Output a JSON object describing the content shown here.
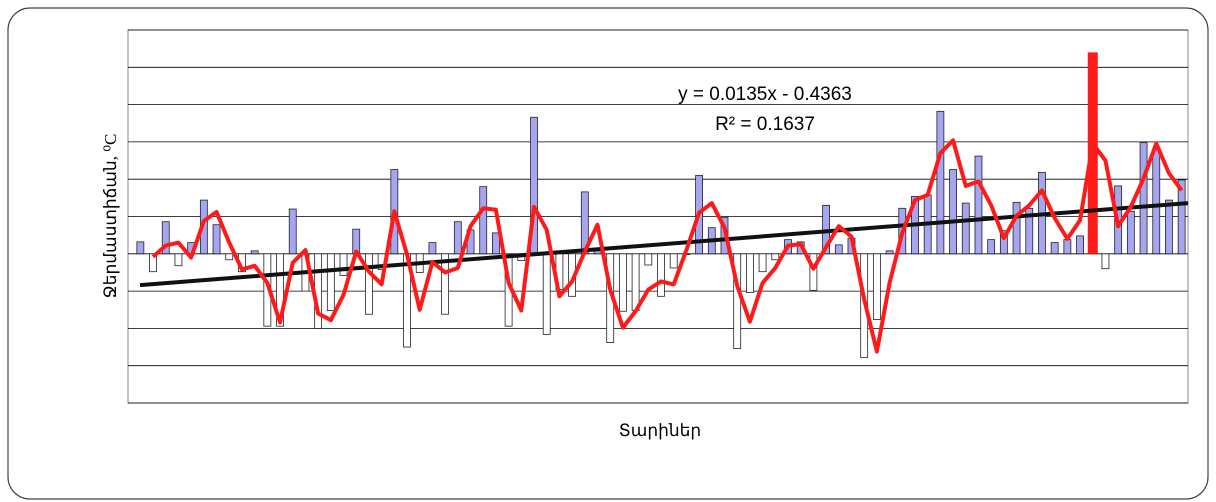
{
  "chart_data": {
    "type": "bar",
    "xlabel": "Տարիներ",
    "ylabel": "Ջերմաստիճան, ⁰C",
    "annotations": [
      "y = 0.0135x - 0.4363",
      "R² = 0.1637"
    ],
    "ylim": [
      -2,
      3
    ],
    "yticks": [
      -2,
      -1.5,
      -1,
      -0.5,
      0,
      0.5,
      1,
      1.5,
      2,
      2.5,
      3
    ],
    "grid": true,
    "categories": [
      null,
      null,
      null,
      null,
      null,
      null,
      null,
      null,
      null,
      null,
      null,
      null,
      null,
      null,
      null,
      null,
      null,
      null,
      null,
      null,
      null,
      null,
      null,
      null,
      null,
      null,
      null,
      null,
      null,
      null,
      null,
      null,
      null,
      null,
      null,
      null,
      null,
      null,
      null,
      null,
      null,
      null,
      null,
      null,
      null,
      null,
      null,
      null,
      null,
      null,
      null,
      null,
      null,
      null,
      null,
      null,
      null,
      null,
      null,
      null,
      null,
      null,
      null,
      null,
      null,
      null,
      null,
      null,
      null,
      null,
      null,
      null,
      null,
      null,
      null,
      null,
      null,
      null,
      null,
      null,
      null,
      null,
      null
    ],
    "series": [
      {
        "type": "bar",
        "color": "#a6a6f0",
        "values": [
          0.16,
          -0.24,
          0.43,
          -0.16,
          0.15,
          0.72,
          0.39,
          -0.08,
          -0.24,
          0.04,
          -0.97,
          -0.97,
          0.6,
          -0.5,
          -1.0,
          -0.76,
          -0.29,
          0.33,
          -0.81,
          -0.21,
          1.13,
          -1.25,
          -0.25,
          0.15,
          -0.81,
          0.43,
          0.32,
          0.9,
          0.28,
          -0.97,
          -0.09,
          1.83,
          -1.08,
          -0.48,
          -0.57,
          0.83,
          0.04,
          -1.19,
          -0.77,
          -0.76,
          -0.15,
          -0.57,
          -0.19,
          -0.01,
          1.05,
          0.35,
          0.49,
          -1.27,
          -0.52,
          -0.24,
          -0.08,
          0.19,
          0.16,
          -0.49,
          0.65,
          0.12,
          0.21,
          -1.39,
          -0.88,
          0.04,
          0.61,
          0.77,
          0.79,
          1.91,
          1.13,
          0.68,
          1.31,
          0.19,
          0.31,
          0.69,
          0.61,
          1.09,
          0.15,
          0.19,
          0.24,
          0.08,
          -0.2,
          0.91,
          0.57,
          1.49,
          1.39,
          0.72,
          0.99
        ]
      },
      {
        "type": "line",
        "color": "#ff1a1a",
        "values": [
          null,
          -0.04,
          0.11,
          0.15,
          -0.05,
          0.44,
          0.56,
          0.15,
          -0.21,
          -0.16,
          -0.39,
          -0.92,
          -0.12,
          0.05,
          -0.8,
          -0.89,
          -0.55,
          0.03,
          -0.24,
          -0.41,
          0.57,
          -0.01,
          -0.75,
          -0.11,
          -0.25,
          -0.19,
          0.37,
          0.61,
          0.59,
          -0.39,
          -0.76,
          0.63,
          0.32,
          -0.57,
          -0.37,
          0.03,
          0.39,
          -0.48,
          -0.99,
          -0.77,
          -0.48,
          -0.37,
          -0.41,
          0.05,
          0.55,
          0.68,
          0.35,
          -0.43,
          -0.91,
          -0.39,
          -0.19,
          0.11,
          0.13,
          -0.2,
          0.09,
          0.37,
          0.23,
          -0.61,
          -1.31,
          -0.39,
          0.28,
          0.72,
          0.79,
          1.35,
          1.52,
          0.91,
          0.97,
          0.65,
          0.21,
          0.51,
          0.65,
          0.85,
          0.48,
          0.2,
          0.45,
          1.48,
          1.25,
          0.37,
          0.63,
          1.01,
          1.48,
          1.08,
          0.85
        ]
      },
      {
        "type": "spike",
        "color": "#ff1a1a",
        "values": [
          null,
          null,
          null,
          null,
          null,
          null,
          null,
          null,
          null,
          null,
          null,
          null,
          null,
          null,
          null,
          null,
          null,
          null,
          null,
          null,
          null,
          null,
          null,
          null,
          null,
          null,
          null,
          null,
          null,
          null,
          null,
          null,
          null,
          null,
          null,
          null,
          null,
          null,
          null,
          null,
          null,
          null,
          null,
          null,
          null,
          null,
          null,
          null,
          null,
          null,
          null,
          null,
          null,
          null,
          null,
          null,
          null,
          null,
          null,
          null,
          null,
          null,
          null,
          null,
          null,
          null,
          null,
          null,
          null,
          null,
          null,
          null,
          null,
          null,
          null,
          2.7,
          null,
          null,
          null,
          null,
          null,
          null,
          null
        ]
      }
    ],
    "trendline": {
      "color": "#111111",
      "values": [
        -0.42,
        0.68
      ]
    }
  }
}
